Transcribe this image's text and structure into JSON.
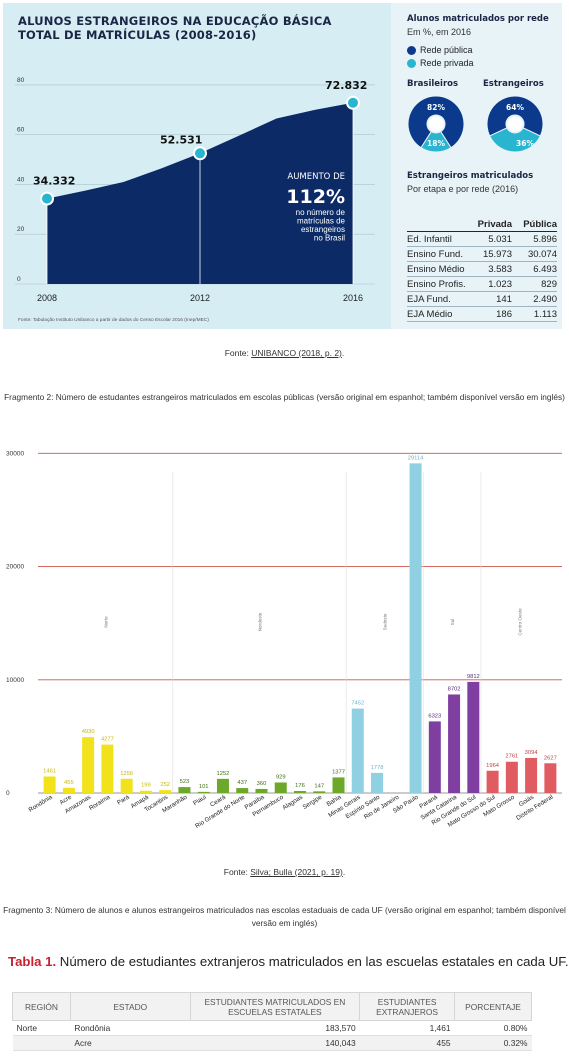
{
  "infographic": {
    "title_line1": "ALUNOS ESTRANGEIROS NA EDUCAÇÃO BÁSICA",
    "title_line2": "TOTAL DE MATRÍCULAS (2008-2016)",
    "source": "Fonte: Tabulação Instituto Unibanco a partir de dados do Censo Escolar 2016 (Inep/MEC)",
    "increase_label": "AUMENTO DE",
    "increase_value": "112%",
    "increase_desc1": "no número de",
    "increase_desc2": "matrículas de",
    "increase_desc3": "estrangeiros",
    "increase_desc4": "no Brasil",
    "point_labels": [
      "34.332",
      "52.531",
      "72.832"
    ],
    "colors": {
      "area": "#0b2a66",
      "panel": "#d6edf4",
      "public": "#0b3a8c",
      "private": "#29b5cf",
      "marker": "#29b5cf"
    }
  },
  "side": {
    "title": "Alunos matriculados por rede",
    "subtitle": "Em %, em 2016",
    "legend_public": "Rede pública",
    "legend_private": "Rede privada",
    "head_br": "Brasileiros",
    "head_est": "Estrangeiros",
    "br_public": "82%",
    "br_private": "18%",
    "est_public": "64%",
    "est_private": "36%",
    "stats_title": "Estrangeiros matriculados",
    "stats_sub": "Por etapa e por rede (2016)",
    "stats_head": [
      "",
      "Privada",
      "Pública"
    ],
    "stats_rows": [
      [
        "Ed. Infantil",
        "5.031",
        "5.896"
      ],
      [
        "Ensino Fund.",
        "15.973",
        "30.074"
      ],
      [
        "Ensino Médio",
        "3.583",
        "6.493"
      ],
      [
        "Ensino Profis.",
        "1.023",
        "829"
      ],
      [
        "EJA Fund.",
        "141",
        "2.490"
      ],
      [
        "EJA Médio",
        "186",
        "1.113"
      ]
    ]
  },
  "caption1": {
    "prefix": "Fonte: ",
    "link": "UNIBANCO (2018, p. 2)",
    "suffix": "."
  },
  "fragment2": "Fragmento 2: Número de estudantes estrangeiros matriculados em escolas públicas (versão original em espanhol; também disponível versão em inglés)",
  "caption2": {
    "prefix": "Fonte: ",
    "link": "Silva; Bulla (2021, p. 19)",
    "suffix": "."
  },
  "fragment3": "Fragmento 3: Número de alunos e alunos estrangeiros matriculados nas escolas estaduais de cada UF (versão original em espanhol; também disponível versão em inglés)",
  "tabla": {
    "label": "Tabla 1.",
    "title": " Número de estudiantes extranjeros matriculados en las escuelas estatales en cada UF.",
    "headers": [
      "REGIÓN",
      "ESTADO",
      "ESTUDIANTES MATRICULADOS EN ESCUELAS ESTATALES",
      "ESTUDIANTES EXTRANJEROS",
      "PORCENTAJE"
    ],
    "rows": [
      [
        "Norte",
        "Rondônia",
        "183,570",
        "1,461",
        "0.80%"
      ],
      [
        "",
        "Acre",
        "140,043",
        "455",
        "0.32%"
      ]
    ]
  },
  "chart_data": [
    {
      "type": "area",
      "title": "ALUNOS ESTRANGEIROS NA EDUCAÇÃO BÁSICA",
      "subtitle": "TOTAL DE MATRÍCULAS (2008-2016)",
      "x": [
        2008,
        2009,
        2010,
        2011,
        2012,
        2013,
        2014,
        2015,
        2016
      ],
      "values": [
        34332,
        37500,
        41000,
        46500,
        52531,
        59500,
        66500,
        70000,
        72832
      ],
      "x_tick_labels": [
        "2008",
        "2012",
        "2016"
      ],
      "y_tick_labels": [
        "0",
        "20",
        "40",
        "60",
        "80"
      ],
      "ylim": [
        0,
        86000
      ],
      "labeled_points": [
        {
          "x": 2008,
          "label": "34.332"
        },
        {
          "x": 2012,
          "label": "52.531"
        },
        {
          "x": 2016,
          "label": "72.832"
        }
      ]
    },
    {
      "type": "pie",
      "title": "Brasileiros",
      "labels": [
        "Rede pública",
        "Rede privada"
      ],
      "values": [
        82,
        18
      ]
    },
    {
      "type": "pie",
      "title": "Estrangeiros",
      "labels": [
        "Rede pública",
        "Rede privada"
      ],
      "values": [
        64,
        36
      ]
    },
    {
      "type": "bar",
      "categories": [
        "Rondônia",
        "Acre",
        "Amazonas",
        "Roraima",
        "Pará",
        "Amapá",
        "Tocantins",
        "Maranhão",
        "Piauí",
        "Ceará",
        "Rio Grande do Norte",
        "Paraíba",
        "Pernambuco",
        "Alagoas",
        "Sergipe",
        "Bahia",
        "Minas Gerais",
        "Espírito Santo",
        "Rio de Janeiro",
        "São Paulo",
        "Paraná",
        "Santa Catarina",
        "Rio Grande do Sul",
        "Mato Grosso do Sul",
        "Mato Grosso",
        "Goiás",
        "Distrito Federal"
      ],
      "values": [
        1461,
        455,
        4930,
        4277,
        1256,
        199,
        252,
        523,
        101,
        1252,
        437,
        360,
        929,
        176,
        147,
        1377,
        7452,
        1778,
        0,
        29114,
        6323,
        8702,
        9812,
        1964,
        2761,
        3094,
        2627
      ],
      "value_labels": [
        "1461",
        "455",
        "4930",
        "4277",
        "1256",
        "199",
        "252",
        "523",
        "101",
        "1252",
        "437",
        "360",
        "929",
        "176",
        "147",
        "1377",
        "7452",
        "1778",
        "",
        "29114",
        "6323",
        "8702",
        "9812",
        "1964",
        "2761",
        "3094",
        "2627"
      ],
      "regions": [
        {
          "name": "Norte",
          "from": 0,
          "to": 6,
          "color": "#f2e21b"
        },
        {
          "name": "Nordeste",
          "from": 7,
          "to": 15,
          "color": "#6da82b"
        },
        {
          "name": "Sudeste",
          "from": 16,
          "to": 19,
          "color": "#8fd0e3"
        },
        {
          "name": "Sul",
          "from": 20,
          "to": 22,
          "color": "#7f3fa0"
        },
        {
          "name": "Centro Oeste",
          "from": 23,
          "to": 26,
          "color": "#e05c60"
        }
      ],
      "y_tick_labels": [
        "0",
        "10000",
        "20000",
        "30000"
      ],
      "ylim": [
        0,
        31000
      ],
      "grid": true
    }
  ]
}
